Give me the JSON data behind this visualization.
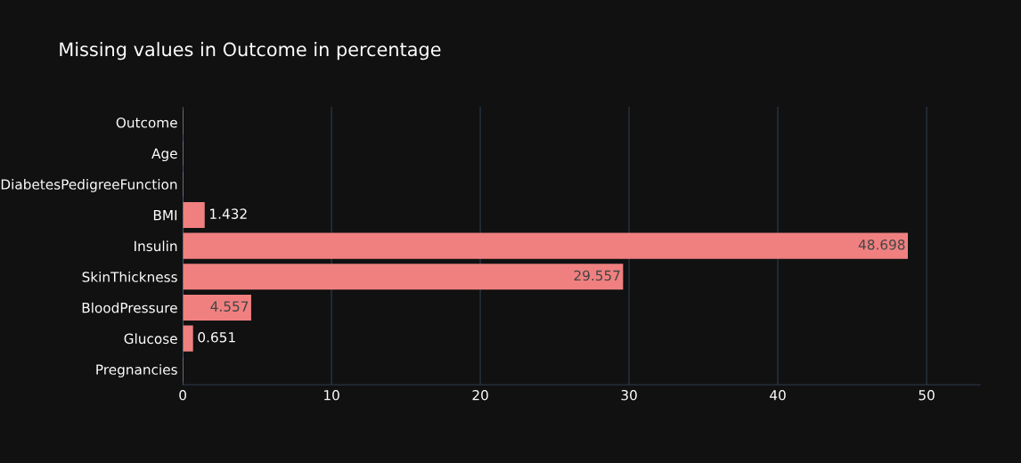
{
  "chart_data": {
    "type": "bar",
    "orientation": "horizontal",
    "title": "Missing values in Outcome in percentage",
    "categories": [
      "Outcome",
      "Age",
      "DiabetesPedigreeFunction",
      "BMI",
      "Insulin",
      "SkinThickness",
      "BloodPressure",
      "Glucose",
      "Pregnancies"
    ],
    "values": [
      0,
      0,
      0,
      1.432,
      48.698,
      29.557,
      4.557,
      0.651,
      0
    ],
    "value_labels": [
      null,
      null,
      null,
      "1.432",
      "48.698",
      "29.557",
      "4.557",
      "0.651",
      null
    ],
    "color": "#f08080",
    "xlim": [
      0,
      53.6
    ],
    "xticks": [
      0,
      10,
      20,
      30,
      40,
      50
    ],
    "grid": "x"
  }
}
